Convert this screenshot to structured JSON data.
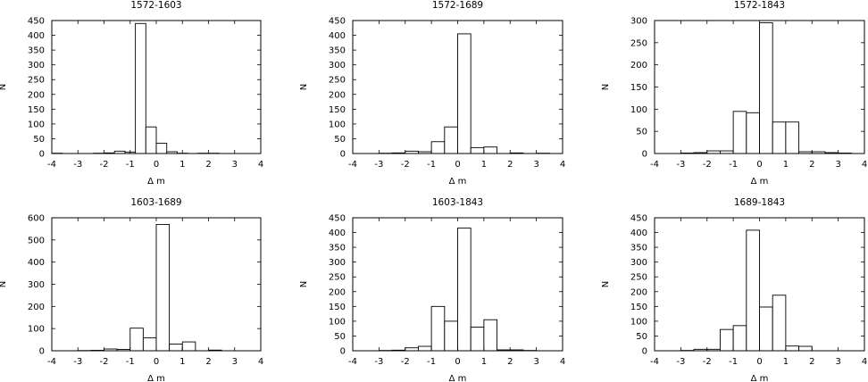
{
  "chart_data": [
    {
      "type": "bar",
      "title": "1572-1603",
      "xlabel": "Δ m",
      "ylabel": "N",
      "xlim": [
        -4,
        4
      ],
      "ylim": [
        0,
        450
      ],
      "xticks": [
        -4,
        -3,
        -2,
        -1,
        0,
        1,
        2,
        3,
        4
      ],
      "yticks": [
        0,
        50,
        100,
        150,
        200,
        250,
        300,
        350,
        400,
        450
      ],
      "bin_width": 0.4,
      "bin_starts": [
        -4.0,
        -3.6,
        -3.2,
        -2.8,
        -2.4,
        -2.0,
        -1.6,
        -1.2,
        -0.8,
        -0.4,
        0.0,
        0.4,
        0.8,
        1.2,
        1.6,
        2.0,
        2.4,
        2.8,
        3.2,
        3.6
      ],
      "values": [
        1,
        0,
        0,
        0,
        1,
        2,
        8,
        5,
        440,
        90,
        35,
        6,
        1,
        0,
        1,
        1,
        0,
        0,
        0,
        0
      ],
      "grid": false,
      "legend": "none"
    },
    {
      "type": "bar",
      "title": "1572-1689",
      "xlabel": "Δ m",
      "ylabel": "N",
      "xlim": [
        -4,
        4
      ],
      "ylim": [
        0,
        450
      ],
      "xticks": [
        -4,
        -3,
        -2,
        -1,
        0,
        1,
        2,
        3,
        4
      ],
      "yticks": [
        0,
        50,
        100,
        150,
        200,
        250,
        300,
        350,
        400,
        450
      ],
      "bin_width": 0.5,
      "bin_starts": [
        -4.0,
        -3.5,
        -3.0,
        -2.5,
        -2.0,
        -1.5,
        -1.0,
        -0.5,
        0.0,
        0.5,
        1.0,
        1.5,
        2.0,
        2.5,
        3.0,
        3.5
      ],
      "values": [
        0,
        0,
        1,
        2,
        8,
        6,
        40,
        90,
        405,
        20,
        22,
        0,
        2,
        0,
        1,
        0
      ],
      "grid": false,
      "legend": "none"
    },
    {
      "type": "bar",
      "title": "1572-1843",
      "xlabel": "Δ m",
      "ylabel": "N",
      "xlim": [
        -4,
        4
      ],
      "ylim": [
        0,
        300
      ],
      "xticks": [
        -4,
        -3,
        -2,
        -1,
        0,
        1,
        2,
        3,
        4
      ],
      "yticks": [
        0,
        50,
        100,
        150,
        200,
        250,
        300
      ],
      "bin_width": 0.5,
      "bin_starts": [
        -4.0,
        -3.5,
        -3.0,
        -2.5,
        -2.0,
        -1.5,
        -1.0,
        -0.5,
        0.0,
        0.5,
        1.0,
        1.5,
        2.0,
        2.5,
        3.0,
        3.5
      ],
      "values": [
        0,
        0,
        1,
        2,
        6,
        6,
        95,
        92,
        295,
        71,
        71,
        4,
        4,
        2,
        1,
        0
      ],
      "grid": false,
      "legend": "none"
    },
    {
      "type": "bar",
      "title": "1603-1689",
      "xlabel": "Δ m",
      "ylabel": "N",
      "xlim": [
        -4,
        4
      ],
      "ylim": [
        0,
        600
      ],
      "xticks": [
        -4,
        -3,
        -2,
        -1,
        0,
        1,
        2,
        3,
        4
      ],
      "yticks": [
        0,
        100,
        200,
        300,
        400,
        500,
        600
      ],
      "bin_width": 0.5,
      "bin_starts": [
        -4.0,
        -3.5,
        -3.0,
        -2.5,
        -2.0,
        -1.5,
        -1.0,
        -0.5,
        0.0,
        0.5,
        1.0,
        1.5,
        2.0,
        2.5,
        3.0,
        3.5
      ],
      "values": [
        0,
        0,
        1,
        2,
        8,
        6,
        102,
        58,
        570,
        30,
        40,
        0,
        3,
        0,
        0,
        0
      ],
      "grid": false,
      "legend": "none"
    },
    {
      "type": "bar",
      "title": "1603-1843",
      "xlabel": "Δ m",
      "ylabel": "N",
      "xlim": [
        -4,
        4
      ],
      "ylim": [
        0,
        450
      ],
      "xticks": [
        -4,
        -3,
        -2,
        -1,
        0,
        1,
        2,
        3,
        4
      ],
      "yticks": [
        0,
        50,
        100,
        150,
        200,
        250,
        300,
        350,
        400,
        450
      ],
      "bin_width": 0.5,
      "bin_starts": [
        -4.0,
        -3.5,
        -3.0,
        -2.5,
        -2.0,
        -1.5,
        -1.0,
        -0.5,
        0.0,
        0.5,
        1.0,
        1.5,
        2.0,
        2.5,
        3.0,
        3.5
      ],
      "values": [
        0,
        0,
        1,
        2,
        10,
        15,
        150,
        100,
        415,
        80,
        105,
        3,
        3,
        1,
        0,
        0
      ],
      "grid": false,
      "legend": "none"
    },
    {
      "type": "bar",
      "title": "1689-1843",
      "xlabel": "Δ m",
      "ylabel": "N",
      "xlim": [
        -4,
        4
      ],
      "ylim": [
        0,
        450
      ],
      "xticks": [
        -4,
        -3,
        -2,
        -1,
        0,
        1,
        2,
        3,
        4
      ],
      "yticks": [
        0,
        50,
        100,
        150,
        200,
        250,
        300,
        350,
        400,
        450
      ],
      "bin_width": 0.5,
      "bin_starts": [
        -4.0,
        -3.5,
        -3.0,
        -2.5,
        -2.0,
        -1.5,
        -1.0,
        -0.5,
        0.0,
        0.5,
        1.0,
        1.5,
        2.0,
        2.5,
        3.0,
        3.5
      ],
      "values": [
        0,
        0,
        1,
        5,
        5,
        72,
        85,
        408,
        148,
        188,
        16,
        15,
        0,
        0,
        0,
        0
      ],
      "grid": false,
      "legend": "none"
    }
  ]
}
